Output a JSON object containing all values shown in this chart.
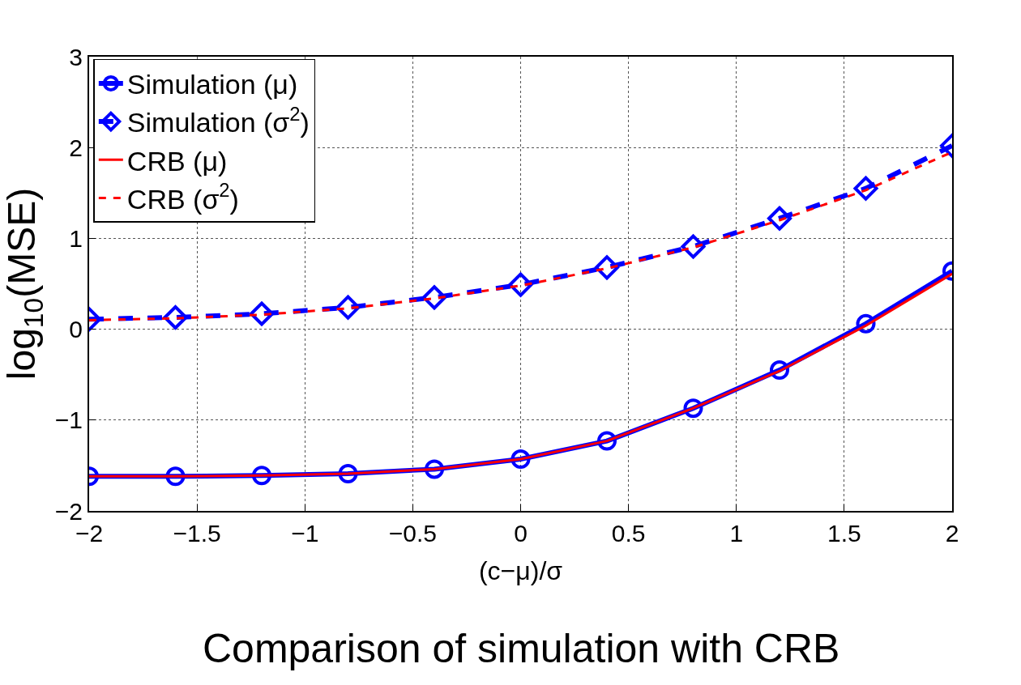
{
  "chart_data": {
    "type": "line",
    "title": "Comparison of simulation with CRB",
    "xlabel": "(c−μ)/σ",
    "ylabel": "log$_{10}$(MSE)",
    "x": [
      -2,
      -1.6,
      -1.2,
      -0.8,
      -0.4,
      0,
      0.4,
      0.8,
      1.2,
      1.6,
      2
    ],
    "series": [
      {
        "name": "Simulation (μ)",
        "color": "#0000ff",
        "marker": "circle",
        "line_style": "solid",
        "values": [
          -1.62,
          -1.62,
          -1.61,
          -1.59,
          -1.54,
          -1.43,
          -1.23,
          -0.87,
          -0.45,
          0.06,
          0.64
        ]
      },
      {
        "name": "Simulation (σ$^{2}$)",
        "color": "#0000ff",
        "marker": "diamond",
        "line_style": "dashed",
        "values": [
          0.11,
          0.13,
          0.17,
          0.24,
          0.35,
          0.49,
          0.68,
          0.91,
          1.22,
          1.55,
          2.02
        ]
      },
      {
        "name": "CRB (μ)",
        "color": "#ff0000",
        "marker": "none",
        "line_style": "solid",
        "values": [
          -1.62,
          -1.62,
          -1.61,
          -1.59,
          -1.54,
          -1.43,
          -1.23,
          -0.87,
          -0.46,
          0.04,
          0.61
        ]
      },
      {
        "name": "CRB (σ$^{2}$)",
        "color": "#ff0000",
        "marker": "none",
        "line_style": "dashed",
        "values": [
          0.1,
          0.12,
          0.16,
          0.23,
          0.34,
          0.48,
          0.67,
          0.9,
          1.2,
          1.53,
          1.95
        ]
      }
    ],
    "xlim": [
      -2,
      2
    ],
    "xticks": [
      {
        "value": -2,
        "label": "−2"
      },
      {
        "value": -1.5,
        "label": "−1.5"
      },
      {
        "value": -1,
        "label": "−1"
      },
      {
        "value": -0.5,
        "label": "−0.5"
      },
      0,
      0.5,
      1,
      1.5,
      2
    ],
    "ylim": [
      -2,
      3
    ],
    "yticks": [
      {
        "value": -2,
        "label": "−2"
      },
      {
        "value": -1,
        "label": "−1"
      },
      0,
      1,
      2,
      3
    ],
    "grid": true,
    "legend": "top left"
  }
}
